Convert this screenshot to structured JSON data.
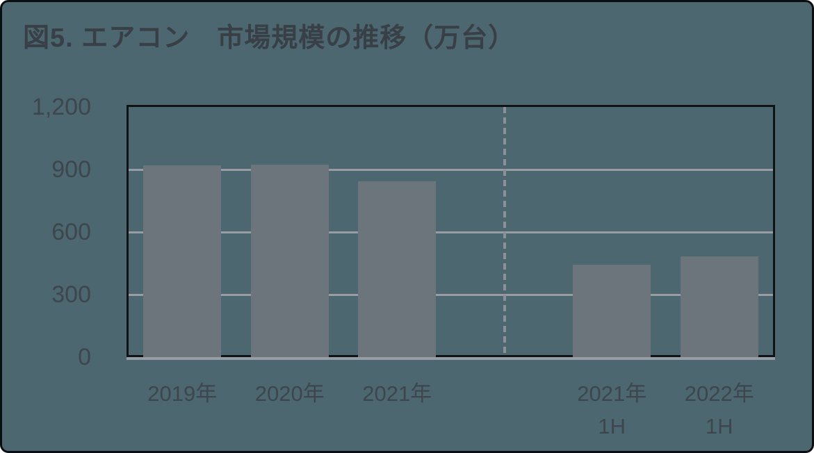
{
  "chart_data": {
    "type": "bar",
    "title": "図5. エアコン　市場規模の推移（万台）",
    "categories": [
      "2019年",
      "2020年",
      "2021年",
      "2021年\n1H",
      "2022年\n1H"
    ],
    "values": [
      920,
      925,
      845,
      445,
      485
    ],
    "xlabel": "",
    "ylabel": "",
    "ylim": [
      0,
      1200
    ],
    "yticks": [
      0,
      300,
      600,
      900,
      1200
    ],
    "ytick_labels": [
      "0",
      "300",
      "600",
      "900",
      "1,200"
    ],
    "grid": "horizontal",
    "legend": "none",
    "divider_after_category_index": 2,
    "colors": {
      "background": "#4c676f",
      "bar": "#6c757c",
      "gridline": "#989da3",
      "divider": "#8a9198",
      "axis_line_black": "#101315",
      "axis_line_gray": "#989da3",
      "tick_text": "#3e464d",
      "title_text": "#383f46",
      "card_border": "#0b0e10"
    }
  }
}
